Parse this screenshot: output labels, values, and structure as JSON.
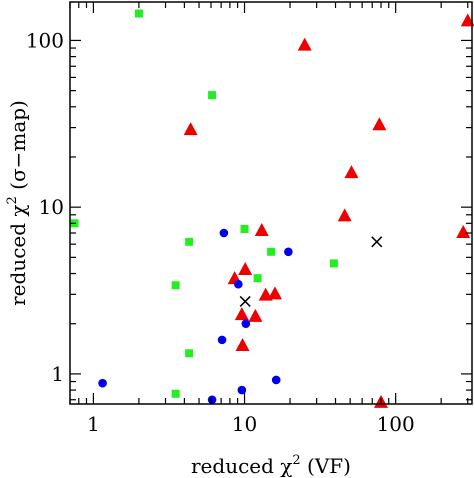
{
  "chart_data": {
    "type": "scatter",
    "xscale": "log",
    "yscale": "log",
    "xlim": [
      0.7,
      320
    ],
    "ylim": [
      0.66,
      170
    ],
    "grid": false,
    "xlabel": {
      "pre": "reduced χ",
      "sup": "2",
      "post": " (VF)"
    },
    "ylabel": {
      "pre": "reduced χ",
      "sup": "2",
      "post": " (σ−map)"
    },
    "x_ticks": [
      {
        "value": 1,
        "label": "1"
      },
      {
        "value": 10,
        "label": "10"
      },
      {
        "value": 100,
        "label": "100"
      }
    ],
    "y_ticks": [
      {
        "value": 1,
        "label": "1"
      },
      {
        "value": 10,
        "label": "10"
      },
      {
        "value": 100,
        "label": "100"
      }
    ],
    "colors": {
      "green": "#22ee22",
      "red": "#ee0000",
      "blue": "#0000ee",
      "black": "#000000"
    },
    "series": [
      {
        "marker": "square",
        "color": "#22ee22",
        "points": [
          {
            "x": 0.75,
            "y": 8.0
          },
          {
            "x": 2.0,
            "y": 145
          },
          {
            "x": 3.5,
            "y": 3.4
          },
          {
            "x": 3.5,
            "y": 0.76
          },
          {
            "x": 4.3,
            "y": 6.2
          },
          {
            "x": 4.3,
            "y": 1.33
          },
          {
            "x": 6.1,
            "y": 47
          },
          {
            "x": 10,
            "y": 7.4
          },
          {
            "x": 12.2,
            "y": 3.75
          },
          {
            "x": 15,
            "y": 5.4
          },
          {
            "x": 39,
            "y": 4.6
          }
        ]
      },
      {
        "marker": "triangle",
        "color": "#ee0000",
        "points": [
          {
            "x": 4.4,
            "y": 29
          },
          {
            "x": 8.6,
            "y": 3.7
          },
          {
            "x": 9.6,
            "y": 2.25
          },
          {
            "x": 9.7,
            "y": 1.47
          },
          {
            "x": 10.1,
            "y": 4.2
          },
          {
            "x": 11.8,
            "y": 2.2
          },
          {
            "x": 13,
            "y": 7.2
          },
          {
            "x": 13.8,
            "y": 2.95
          },
          {
            "x": 15.9,
            "y": 3.0
          },
          {
            "x": 25,
            "y": 93
          },
          {
            "x": 46,
            "y": 8.8
          },
          {
            "x": 51,
            "y": 16
          },
          {
            "x": 78,
            "y": 31
          },
          {
            "x": 80,
            "y": 0.67
          },
          {
            "x": 280,
            "y": 7.0
          },
          {
            "x": 300,
            "y": 130
          }
        ]
      },
      {
        "marker": "circle",
        "color": "#0000ee",
        "points": [
          {
            "x": 1.15,
            "y": 0.88
          },
          {
            "x": 6.1,
            "y": 0.7
          },
          {
            "x": 7.1,
            "y": 1.6
          },
          {
            "x": 7.3,
            "y": 7.0
          },
          {
            "x": 9.1,
            "y": 3.45
          },
          {
            "x": 9.6,
            "y": 0.8
          },
          {
            "x": 10.2,
            "y": 2.0
          },
          {
            "x": 16.2,
            "y": 0.92
          },
          {
            "x": 19.5,
            "y": 5.4
          }
        ]
      },
      {
        "marker": "cross",
        "color": "#000000",
        "points": [
          {
            "x": 10.1,
            "y": 2.72
          },
          {
            "x": 75,
            "y": 6.2
          }
        ]
      }
    ]
  }
}
